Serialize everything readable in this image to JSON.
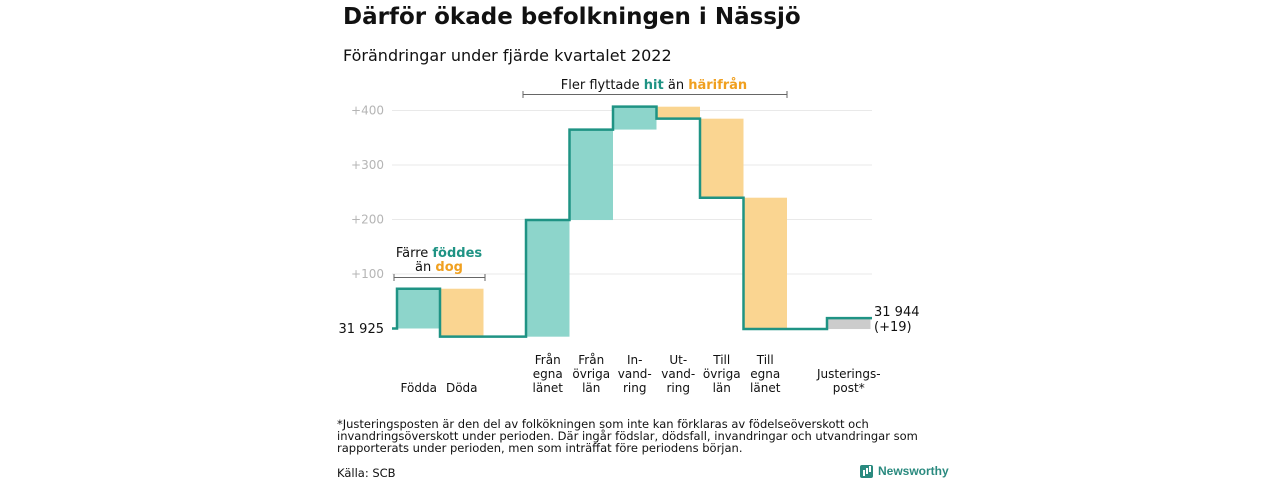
{
  "title": "Därför ökade befolkningen i Nässjö",
  "subtitle": "Förändringar under fjärde kvartalet 2022",
  "colors": {
    "positive": "#8dd5cb",
    "negative": "#fad591",
    "adjustment": "#cccccc",
    "line": "#1f9384",
    "axis": "#b5b5b5"
  },
  "chart_data": {
    "type": "waterfall",
    "start_value": 31925,
    "start_label": "31 925",
    "end_label": "31 944",
    "end_change_label": "(+19)",
    "y_ticks": [
      "+100",
      "+200",
      "+300",
      "+400"
    ],
    "y_tick_values": [
      100,
      200,
      300,
      400
    ],
    "steps": [
      {
        "label": [
          "Födda"
        ],
        "change": 73
      },
      {
        "label": [
          "Döda"
        ],
        "change": -88
      },
      {
        "label": [
          "Från",
          "egna",
          "länet"
        ],
        "change": 214
      },
      {
        "label": [
          "Från",
          "övriga",
          "län"
        ],
        "change": 166
      },
      {
        "label": [
          "In-",
          "vand-",
          "ring"
        ],
        "change": 42
      },
      {
        "label": [
          "Ut-",
          "vand-",
          "ring"
        ],
        "change": -22
      },
      {
        "label": [
          "Till",
          "övriga",
          "län"
        ],
        "change": -145
      },
      {
        "label": [
          "Till",
          "egna",
          "länet"
        ],
        "change": -241
      },
      {
        "label": [
          "Justerings-",
          "post*"
        ],
        "change": 20
      }
    ],
    "annotations": {
      "births": {
        "line1": "Färre ",
        "line1_highlight": "föddes",
        "line2": "än ",
        "line2_highlight": "dog"
      },
      "migration": {
        "prefix": "Fler flyttade ",
        "highlight1": "hit",
        "middle": " än ",
        "highlight2": "härifrån"
      }
    }
  },
  "footnote": "*Justeringsposten är den del av folkökningen som inte kan förklaras av födelseöverskott och invandringsöverskott under perioden. Där ingår födslar, dödsfall, invandringar och utvandringar som rapporterats under perioden, men som inträffat före periodens början.",
  "source": "Källa: SCB",
  "logo_text": "Newsworthy"
}
